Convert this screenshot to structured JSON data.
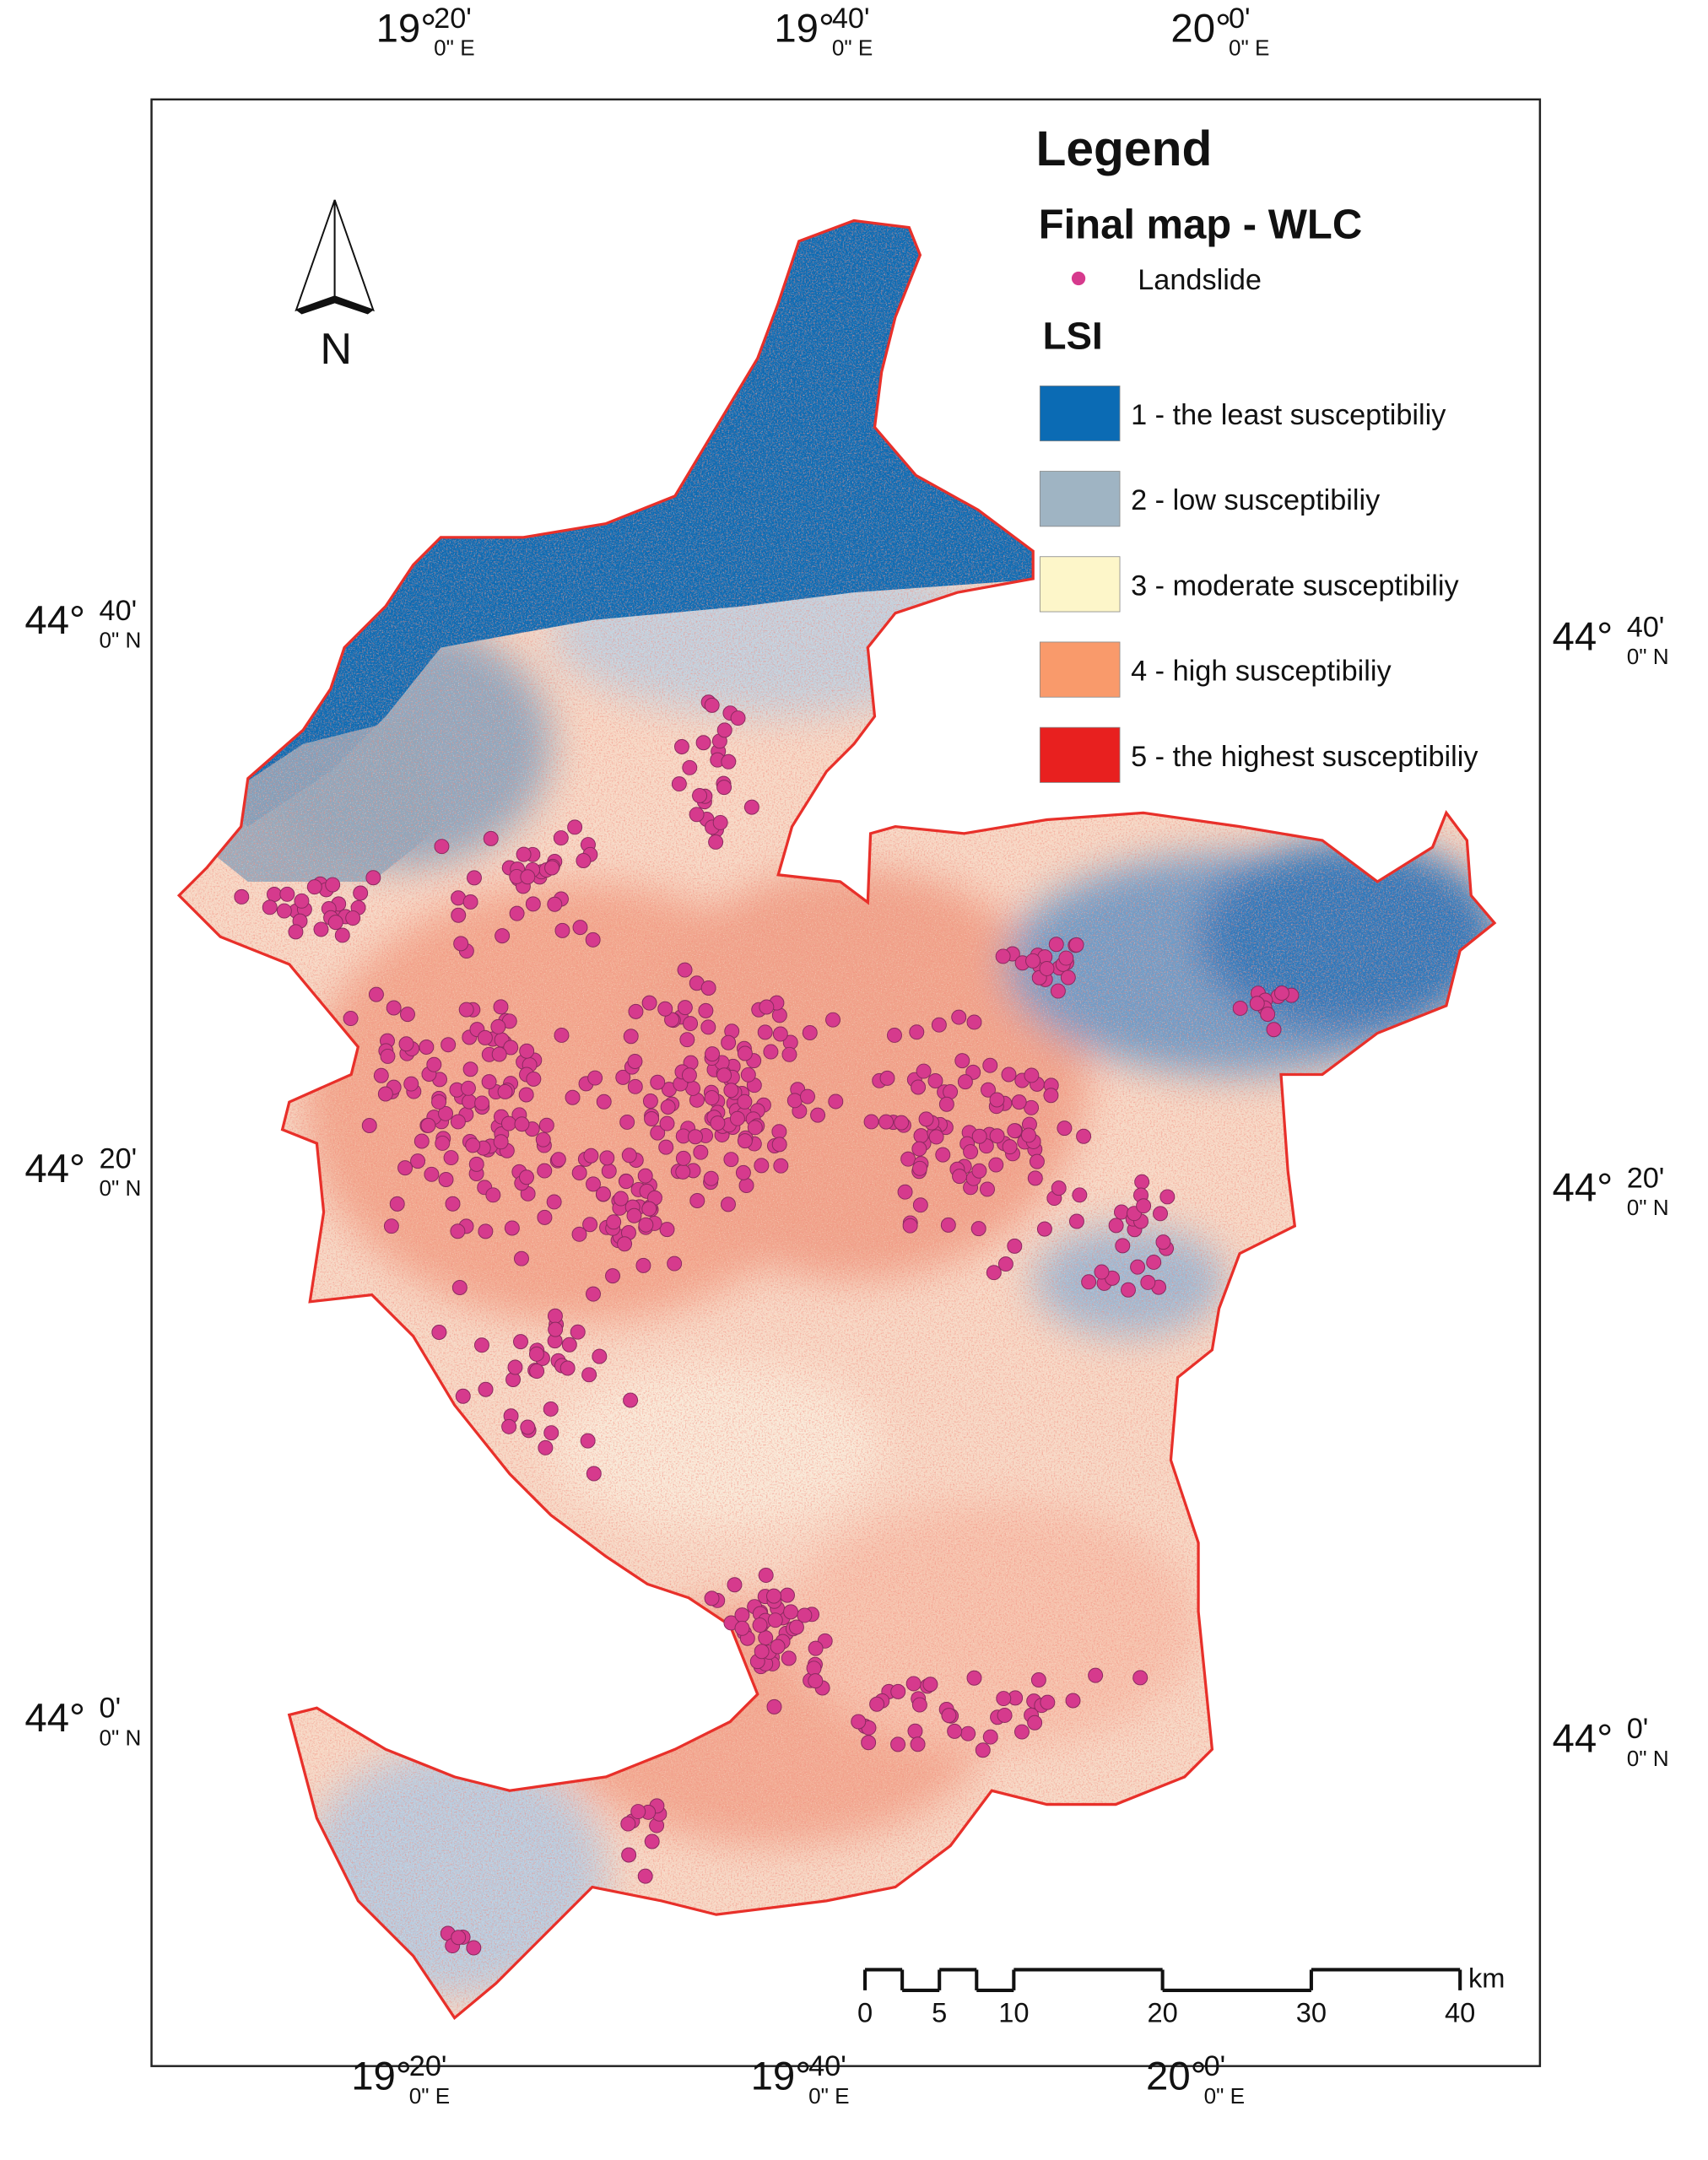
{
  "legend": {
    "title": "Legend",
    "subtitle": "Final map - WLC",
    "point_label": "Landslide",
    "point_color": "#d63a8d",
    "group_title": "LSI",
    "classes": [
      {
        "label": "1 - the least susceptibiliy",
        "color": "#0b6bb4"
      },
      {
        "label": "2 - low susceptibiliy",
        "color": "#9fb4c3"
      },
      {
        "label": "3 - moderate susceptibiliy",
        "color": "#fdf6c9"
      },
      {
        "label": "4 - high susceptibiliy",
        "color": "#f99a6b"
      },
      {
        "label": "5 - the highest susceptibiliy",
        "color": "#e8201f"
      }
    ]
  },
  "north_arrow": "N",
  "longitude_labels": [
    {
      "deg": "19°",
      "min": "20'",
      "sec": "0\" E"
    },
    {
      "deg": "19°",
      "min": "40'",
      "sec": "0\" E"
    },
    {
      "deg": "20°",
      "min": "0'",
      "sec": "0\" E"
    }
  ],
  "latitude_labels": [
    {
      "deg": "44°",
      "min": "40'",
      "sec": "0\" N"
    },
    {
      "deg": "44°",
      "min": "20'",
      "sec": "0\" N"
    },
    {
      "deg": "44°",
      "min": "0'",
      "sec": "0\" N"
    }
  ],
  "scale_bar": {
    "ticks": [
      0,
      5,
      10,
      20,
      30,
      40
    ],
    "unit": "km"
  }
}
